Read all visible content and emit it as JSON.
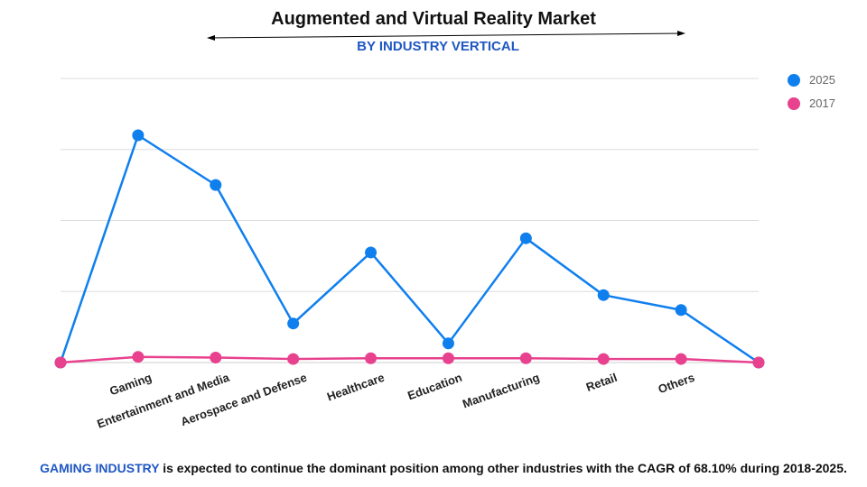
{
  "header": {
    "title": "Augmented and Virtual Reality Market",
    "subtitle": "BY INDUSTRY VERTICAL"
  },
  "footer": {
    "highlight": "GAMING INDUSTRY",
    "text": " is expected to continue the dominant position among other industries with the CAGR of 68.10% during 2018-2025."
  },
  "colors": {
    "series_2025": "#0f7fee",
    "series_2017": "#e8418e",
    "accent": "#1f57c3"
  },
  "chart_data": {
    "type": "line",
    "title": "Augmented and Virtual Reality Market",
    "subtitle": "BY INDUSTRY VERTICAL",
    "categories": [
      "",
      "Gaming",
      "Entertainment and Media",
      "Aerospace and Defense",
      "Healthcare",
      "Education",
      "Manufacturing",
      "Retail",
      "Others",
      ""
    ],
    "series": [
      {
        "name": "2025",
        "color": "#0f7fee",
        "values": [
          0,
          3.2,
          2.5,
          0.55,
          1.55,
          0.27,
          1.75,
          0.95,
          0.74,
          0
        ]
      },
      {
        "name": "2017",
        "color": "#e8418e",
        "values": [
          0,
          0.08,
          0.07,
          0.05,
          0.06,
          0.06,
          0.06,
          0.05,
          0.05,
          0
        ]
      }
    ],
    "ylim": [
      0,
      4
    ],
    "y_ticks_shown": false,
    "grid": true,
    "legend": "top-right"
  }
}
